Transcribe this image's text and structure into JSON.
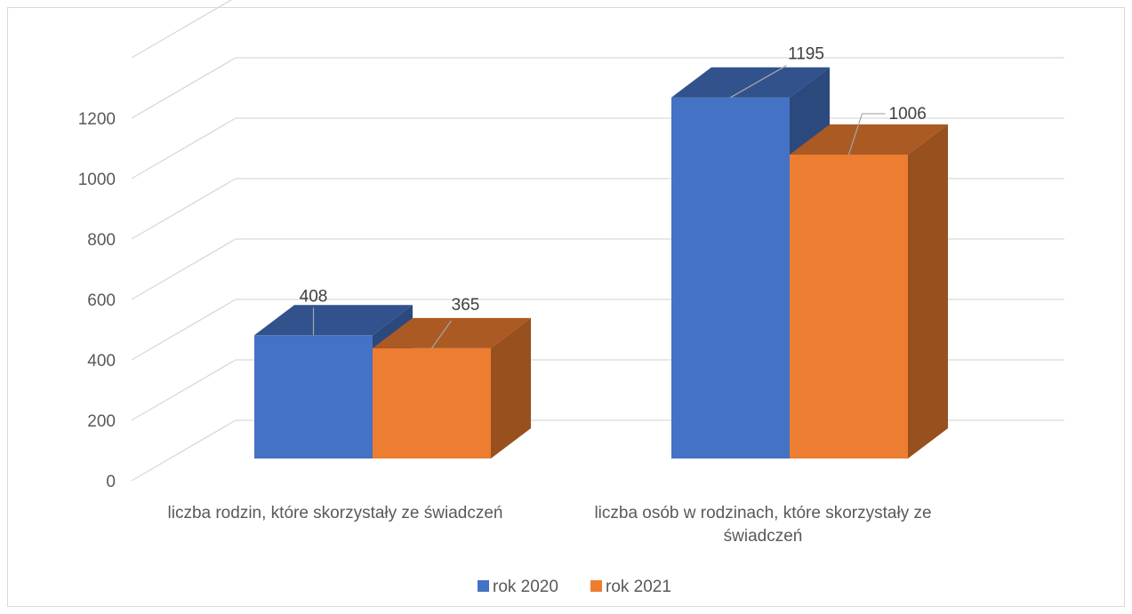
{
  "chart_data": {
    "type": "bar",
    "three_d": true,
    "categories": [
      [
        "liczba rodzin, które skorzystały ze świadczeń"
      ],
      [
        "liczba osób w rodzinach, które skorzystały ze",
        "świadczeń"
      ]
    ],
    "series": [
      {
        "name": "rok 2020",
        "values": [
          408,
          1195
        ],
        "color": "#4472c4"
      },
      {
        "name": "rok 2021",
        "values": [
          365,
          1006
        ],
        "color": "#ed7d31"
      }
    ],
    "ylim": [
      0,
      1400
    ],
    "yticks": [
      0,
      200,
      400,
      600,
      800,
      1000,
      1200
    ],
    "grid": true,
    "legend": "bottom",
    "title": "",
    "xlabel": "",
    "ylabel": ""
  }
}
